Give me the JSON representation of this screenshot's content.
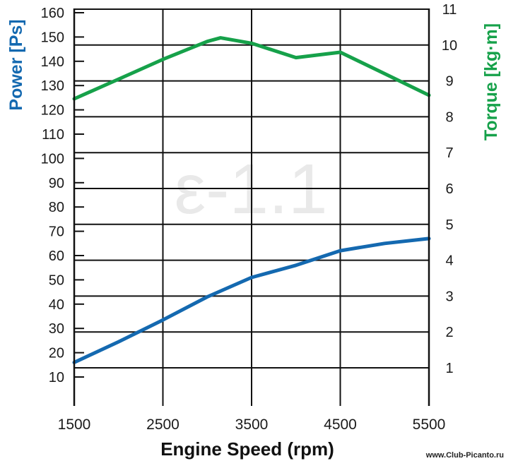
{
  "chart_data": {
    "type": "line",
    "title": "",
    "watermark": "ε-1.1",
    "xlabel": "Engine Speed (rpm)",
    "ylabel_left": "Power [Ps]",
    "ylabel_right": "Torque [kg·m]",
    "x_ticks": [
      "1500",
      "2500",
      "3500",
      "4500",
      "5500"
    ],
    "xlim": [
      1500,
      5500
    ],
    "ylim_left": [
      0,
      160
    ],
    "ylim_right": [
      0,
      11
    ],
    "y_ticks_left": [
      "10",
      "20",
      "30",
      "40",
      "50",
      "60",
      "70",
      "80",
      "90",
      "100",
      "110",
      "120",
      "130",
      "140",
      "150",
      "160"
    ],
    "y_ticks_right": [
      "1",
      "2",
      "3",
      "4",
      "5",
      "6",
      "7",
      "8",
      "9",
      "10",
      "11"
    ],
    "grid": true,
    "series": [
      {
        "key": "power",
        "axis": "left",
        "color": "#1469b0",
        "x": [
          1500,
          2000,
          2500,
          3000,
          3500,
          4000,
          4500,
          5000,
          5500
        ],
        "y": [
          16,
          24.5,
          33.5,
          43,
          51,
          56,
          62,
          65,
          67
        ]
      },
      {
        "key": "torque",
        "axis": "right",
        "color": "#16a14a",
        "x": [
          1500,
          2000,
          2500,
          3000,
          3150,
          3500,
          4000,
          4500,
          5000,
          5500
        ],
        "y": [
          8.5,
          9.05,
          9.6,
          10.1,
          10.2,
          10.05,
          9.65,
          9.8,
          9.2,
          8.6
        ]
      }
    ]
  },
  "credit": "www.Club-Picanto.ru"
}
